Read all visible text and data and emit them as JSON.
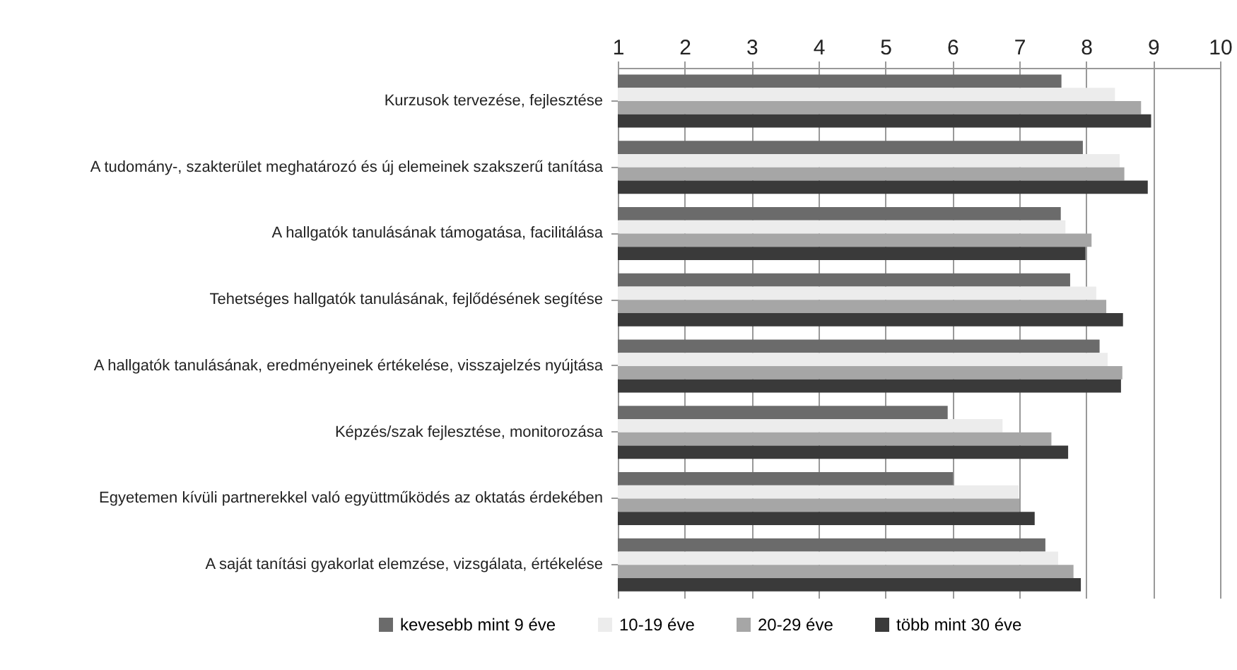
{
  "chart_data": {
    "type": "bar",
    "orientation": "horizontal",
    "categories": [
      "Kurzusok tervezése, fejlesztése",
      "A tudomány-, szakterület meghatározó és új elemeinek szakszerű tanítása",
      "A hallgatók tanulásának támogatása, facilitálása",
      "Tehetséges hallgatók tanulásának, fejlődésének segítése",
      "A hallgatók tanulásának, eredményeinek értékelése, visszajelzés nyújtása",
      "Képzés/szak fejlesztése, monitorozása",
      "Egyetemen kívüli partnerekkel való együttműködés az oktatás érdekében",
      "A saját tanítási gyakorlat elemzése, vizsgálata, értékelése"
    ],
    "series": [
      {
        "name": "kevesebb mint 9 éve",
        "color": "#6b6b6b",
        "values": [
          7.63,
          7.95,
          7.62,
          7.76,
          8.2,
          5.93,
          6.01,
          7.39
        ]
      },
      {
        "name": "10-19 éve",
        "color": "#ececec",
        "values": [
          8.43,
          8.5,
          7.69,
          8.15,
          8.32,
          6.75,
          6.99,
          7.58
        ]
      },
      {
        "name": "20-29 éve",
        "color": "#a6a6a6",
        "values": [
          8.82,
          8.57,
          8.08,
          8.3,
          8.54,
          7.48,
          7.0,
          7.81
        ]
      },
      {
        "name": "több mint 30 éve",
        "color": "#3a3a3a",
        "values": [
          8.97,
          8.92,
          7.99,
          8.55,
          8.52,
          7.73,
          7.23,
          7.92
        ]
      }
    ],
    "xlim": [
      1,
      10
    ],
    "xticks": [
      1,
      2,
      3,
      4,
      5,
      6,
      7,
      8,
      9,
      10
    ],
    "grid": "x",
    "legend": "bottom"
  }
}
